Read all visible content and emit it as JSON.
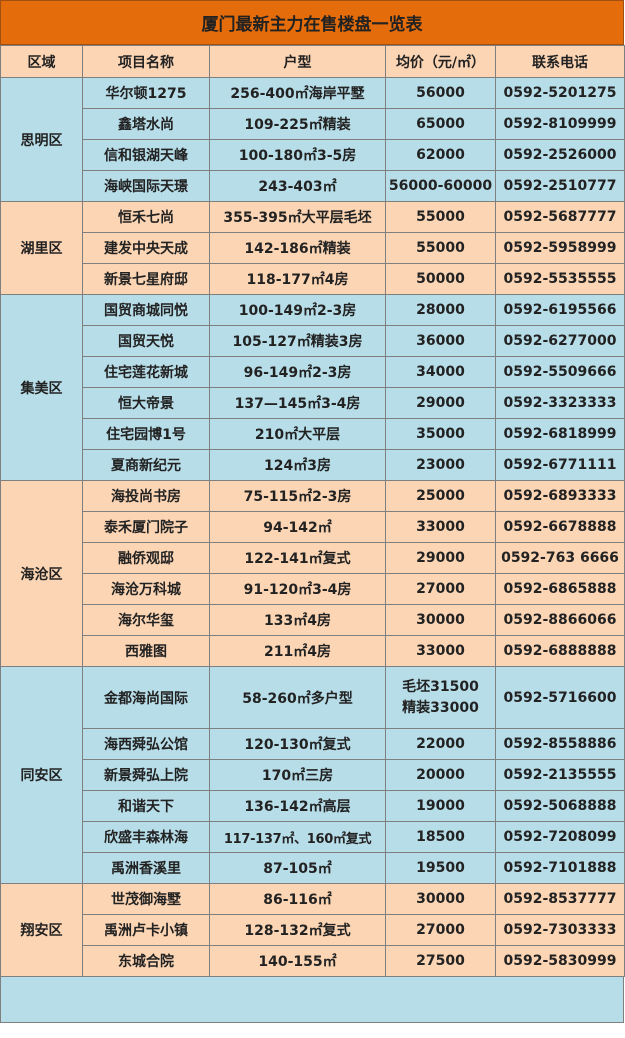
{
  "title": "厦门最新主力在售楼盘一览表",
  "headers": [
    "区域",
    "项目名称",
    "户型",
    "均价（元/㎡）",
    "联系电话"
  ],
  "colors": {
    "title": "#e46c0a",
    "header": "#fcd5b4",
    "blue": "#b7dde8",
    "peach": "#fcd5b4"
  },
  "regions": [
    {
      "name": "思明区",
      "color": "blue",
      "rows": [
        {
          "project": "华尔顿1275",
          "type": "256-400㎡海岸平墅",
          "price": "56000",
          "phone": "0592-5201275"
        },
        {
          "project": "鑫塔水尚",
          "type": "109-225㎡精装",
          "price": "65000",
          "phone": "0592-8109999"
        },
        {
          "project": "信和银湖天峰",
          "type": "100-180㎡3-5房",
          "price": "62000",
          "phone": "0592-2526000"
        },
        {
          "project": "海峡国际天璟",
          "type": "243-403㎡",
          "price": "56000-60000",
          "phone": "0592-2510777"
        }
      ]
    },
    {
      "name": "湖里区",
      "color": "peach",
      "rows": [
        {
          "project": "恒禾七尚",
          "type": "355-395㎡大平层毛坯",
          "price": "55000",
          "phone": "0592-5687777"
        },
        {
          "project": "建发中央天成",
          "type": "142-186㎡精装",
          "price": "55000",
          "phone": "0592-5958999"
        },
        {
          "project": "新景七星府邸",
          "type": "118-177㎡4房",
          "price": "50000",
          "phone": "0592-5535555"
        }
      ]
    },
    {
      "name": "集美区",
      "color": "blue",
      "rows": [
        {
          "project": "国贸商城同悦",
          "type": "100-149㎡2-3房",
          "price": "28000",
          "phone": "0592-6195566"
        },
        {
          "project": "国贸天悦",
          "type": "105-127㎡精装3房",
          "price": "36000",
          "phone": "0592-6277000"
        },
        {
          "project": "住宅莲花新城",
          "type": "96-149㎡2-3房",
          "price": "34000",
          "phone": "0592-5509666"
        },
        {
          "project": "恒大帝景",
          "type": "137—145㎡3-4房",
          "price": "29000",
          "phone": "0592-3323333"
        },
        {
          "project": "住宅园博1号",
          "type": "210㎡大平层",
          "price": "35000",
          "phone": "0592-6818999"
        },
        {
          "project": "夏商新纪元",
          "type": "124㎡3房",
          "price": "23000",
          "phone": "0592-6771111"
        }
      ]
    },
    {
      "name": "海沧区",
      "color": "peach",
      "rows": [
        {
          "project": "海投尚书房",
          "type": "75-115㎡2-3房",
          "price": "25000",
          "phone": "0592-6893333"
        },
        {
          "project": "泰禾厦门院子",
          "type": "94-142㎡",
          "price": "33000",
          "phone": "0592-6678888"
        },
        {
          "project": "融侨观邸",
          "type": "122-141㎡复式",
          "price": "29000",
          "phone": "0592-763 6666"
        },
        {
          "project": "海沧万科城",
          "type": "91-120㎡3-4房",
          "price": "27000",
          "phone": "0592-6865888"
        },
        {
          "project": "海尔华玺",
          "type": "133㎡4房",
          "price": "30000",
          "phone": "0592-8866066"
        },
        {
          "project": "西雅图",
          "type": "211㎡4房",
          "price": "33000",
          "phone": "0592-6888888"
        }
      ]
    },
    {
      "name": "同安区",
      "color": "blue",
      "rows": [
        {
          "project": "金都海尚国际",
          "type": "58-260㎡多户型",
          "price": "毛坯31500",
          "price2": "精装33000",
          "phone": "0592-5716600"
        },
        {
          "project": "海西舜弘公馆",
          "type": "120-130㎡复式",
          "price": "22000",
          "phone": "0592-8558886"
        },
        {
          "project": "新景舜弘上院",
          "type": "170㎡三房",
          "price": "20000",
          "phone": "0592-2135555"
        },
        {
          "project": "和谐天下",
          "type": "136-142㎡高层",
          "price": "19000",
          "phone": "0592-5068888"
        },
        {
          "project": "欣盛丰森林海",
          "type": "117-137㎡、160㎡复式",
          "price": "18500",
          "phone": "0592-7208099"
        },
        {
          "project": "禹洲香溪里",
          "type": "87-105㎡",
          "price": "19500",
          "phone": "0592-7101888"
        }
      ]
    },
    {
      "name": "翔安区",
      "color": "peach",
      "rows": [
        {
          "project": "世茂御海墅",
          "type": "86-116㎡",
          "price": "30000",
          "phone": "0592-8537777"
        },
        {
          "project": "禹洲卢卡小镇",
          "type": "128-132㎡复式",
          "price": "27000",
          "phone": "0592-7303333"
        },
        {
          "project": "东城合院",
          "type": "140-155㎡",
          "price": "27500",
          "phone": "0592-5830999"
        }
      ]
    }
  ]
}
